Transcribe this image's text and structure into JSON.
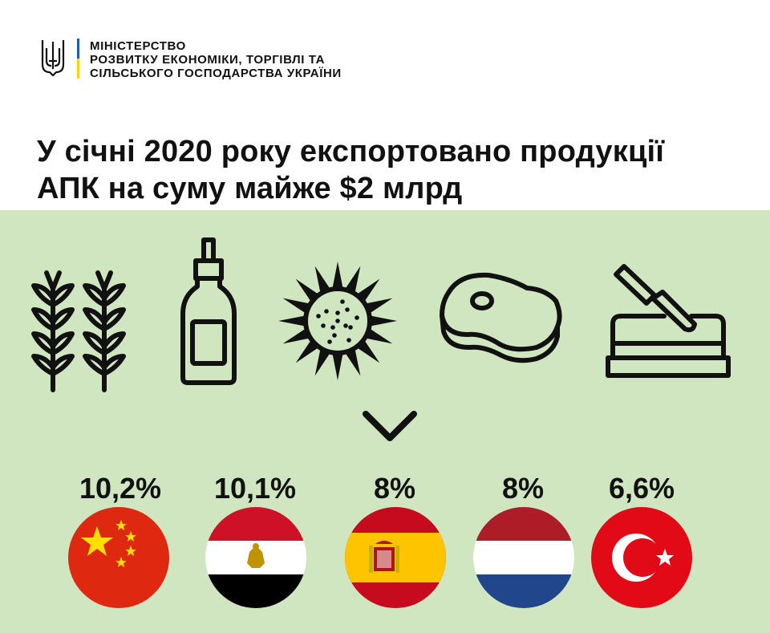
{
  "ministry": {
    "lines": [
      "МІНІСТЕРСТВО",
      "РОЗВИТКУ ЕКОНОМІКИ, ТОРГІВЛІ ТА",
      "СІЛЬСЬКОГО ГОСПОДАРСТВА УКРАЇНИ"
    ]
  },
  "headline": {
    "lines": [
      "У січні 2020 року експортовано продукції",
      "АПК на суму майже $2 млрд"
    ]
  },
  "colors": {
    "panel_bg": "#cfe6c0",
    "ua_blue": "#1f57c3",
    "ua_yellow": "#ffd400",
    "icon_stroke": "#111111"
  },
  "products": [
    {
      "icon": "wheat-icon"
    },
    {
      "icon": "oil-bottle-icon"
    },
    {
      "icon": "sunflower-icon"
    },
    {
      "icon": "meat-icon"
    },
    {
      "icon": "butter-dish-icon"
    }
  ],
  "divider_icon": "chevron-down-icon",
  "countries": [
    {
      "flag": "china-flag-icon",
      "share": "10,2%"
    },
    {
      "flag": "egypt-flag-icon",
      "share": "10,1%"
    },
    {
      "flag": "spain-flag-icon",
      "share": "8%"
    },
    {
      "flag": "netherlands-flag-icon",
      "share": "8%"
    },
    {
      "flag": "turkey-flag-icon",
      "share": "6,6%"
    }
  ]
}
